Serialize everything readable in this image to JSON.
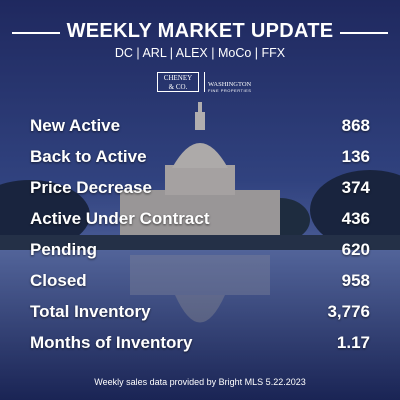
{
  "header": {
    "title": "WEEKLY MARKET UPDATE",
    "subtitle": "DC | ARL | ALEX | MoCo | FFX"
  },
  "logos": {
    "left": [
      "CHENEY",
      "& CO."
    ],
    "right": "WASHINGTON",
    "right_tagline": "FINE PROPERTIES"
  },
  "table": {
    "rows": [
      [
        "New Active",
        "868"
      ],
      [
        "Back to Active",
        "136"
      ],
      [
        "Price Decrease",
        "374"
      ],
      [
        "Active Under Contract",
        "436"
      ],
      [
        "Pending",
        "620"
      ],
      [
        "Closed",
        "958"
      ],
      [
        "Total Inventory",
        "3,776"
      ],
      [
        "Months of Inventory",
        "1.17"
      ]
    ]
  },
  "footer": "Weekly sales data provided by Bright MLS 5.22.2023"
}
